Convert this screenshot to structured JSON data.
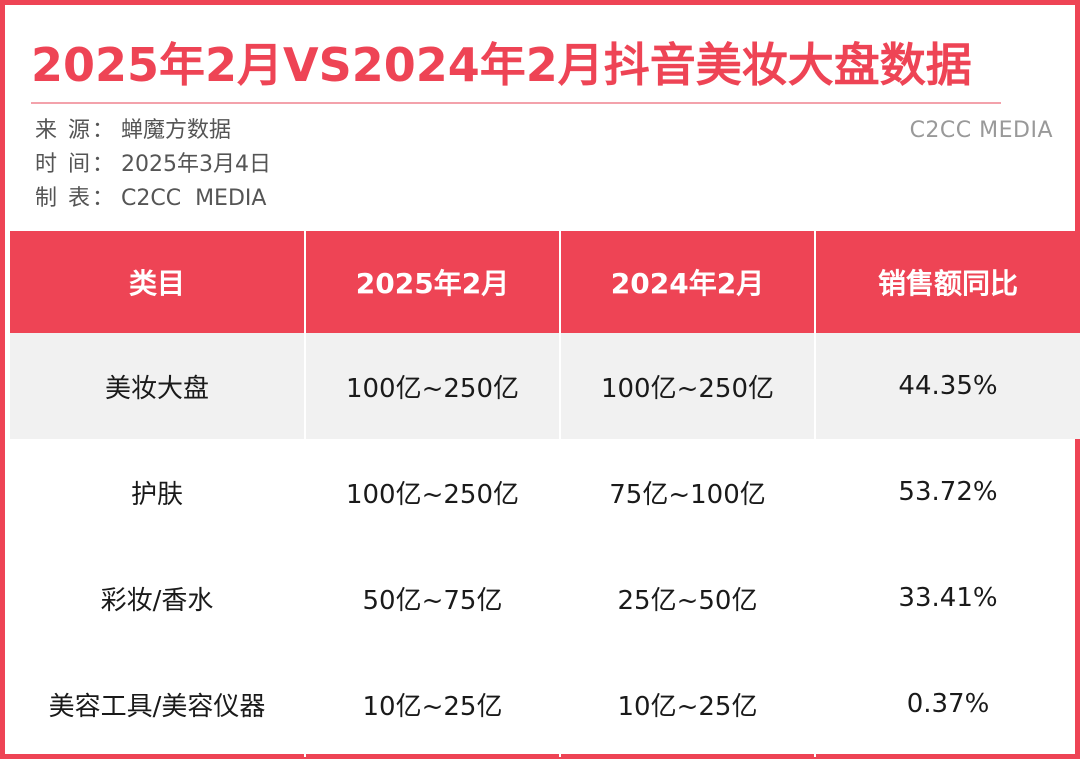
{
  "title": "2025年2月VS2024年2月抖音美妆大盘数据",
  "meta": {
    "source_label": "来 源：",
    "source_value": "蝉魔方数据",
    "time_label": "时 间：",
    "time_value": "2025年3月4日",
    "maker_label": "制 表：",
    "maker_value": "C2CC  MEDIA"
  },
  "brand": "C2CC MEDIA",
  "table": {
    "headers": [
      "类目",
      "2025年2月",
      "2024年2月",
      "销售额同比"
    ],
    "rows": [
      [
        "美妆大盘",
        "100亿~250亿",
        "100亿~250亿",
        "44.35%"
      ],
      [
        "护肤",
        "100亿~250亿",
        "75亿~100亿",
        "53.72%"
      ],
      [
        "彩妆/香水",
        "50亿~75亿",
        "25亿~50亿",
        "33.41%"
      ],
      [
        "美容工具/美容仪器",
        "10亿~25亿",
        "10亿~25亿",
        "0.37%"
      ]
    ]
  },
  "colors": {
    "accent": "#ee4455",
    "shaded_row": "#f1f1f1"
  }
}
